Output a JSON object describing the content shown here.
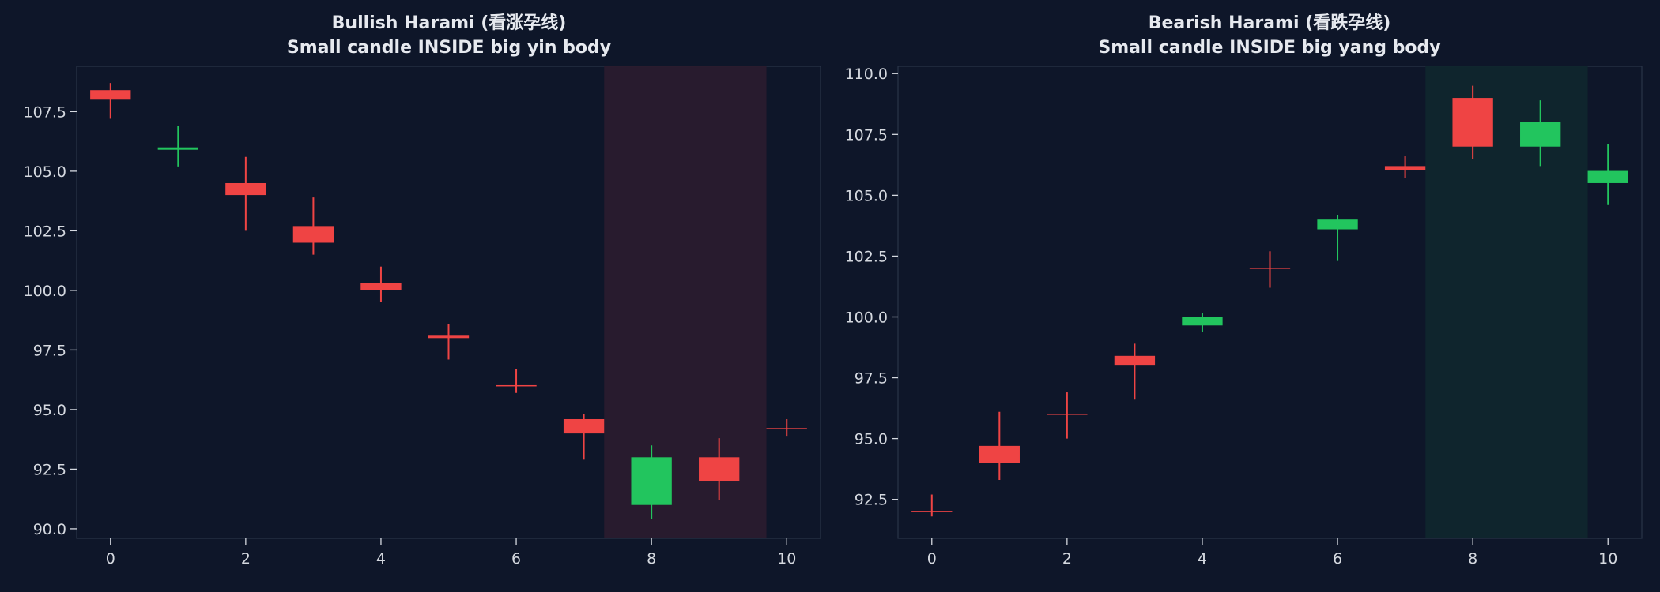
{
  "colors": {
    "background": "#0e1629",
    "panel_face": "#0e1629",
    "panel_edge": "#2a3448",
    "text": "#d5d9e0",
    "title_text": "#e6e9ef",
    "yin": "#ef4444",
    "yang": "#22c55e",
    "highlight_bullish": "#2a1b2e",
    "highlight_bearish": "#10262d"
  },
  "chart_data": [
    {
      "type": "candlestick",
      "title": "Bullish Harami (看涨孕线)",
      "subtitle": "Small candle INSIDE big yin body",
      "xlabel": "",
      "ylabel": "",
      "xlim": [
        -0.5,
        10.5
      ],
      "ylim": [
        89.6,
        109.4
      ],
      "xticks": [
        0,
        2,
        4,
        6,
        8,
        10
      ],
      "yticks": [
        90.0,
        92.5,
        95.0,
        97.5,
        100.0,
        102.5,
        105.0,
        107.5
      ],
      "grid": false,
      "highlight": {
        "x0": 7.3,
        "x1": 9.7,
        "color": "#2a1b2e"
      },
      "candles": [
        {
          "x": 0,
          "open": 108.4,
          "close": 108.0,
          "high": 108.7,
          "low": 107.2
        },
        {
          "x": 1,
          "open": 105.9,
          "close": 106.0,
          "high": 106.9,
          "low": 105.2
        },
        {
          "x": 2,
          "open": 104.5,
          "close": 104.0,
          "high": 105.6,
          "low": 102.5
        },
        {
          "x": 3,
          "open": 102.7,
          "close": 102.0,
          "high": 103.9,
          "low": 101.5
        },
        {
          "x": 4,
          "open": 100.3,
          "close": 100.0,
          "high": 101.0,
          "low": 99.5
        },
        {
          "x": 5,
          "open": 98.1,
          "close": 98.0,
          "high": 98.6,
          "low": 97.1
        },
        {
          "x": 6,
          "open": 96.0,
          "close": 96.0,
          "high": 96.7,
          "low": 95.7
        },
        {
          "x": 7,
          "open": 94.6,
          "close": 94.0,
          "high": 94.8,
          "low": 92.9
        },
        {
          "x": 8,
          "open": 91.0,
          "close": 93.0,
          "high": 93.5,
          "low": 90.4
        },
        {
          "x": 9,
          "open": 93.0,
          "close": 92.0,
          "high": 93.8,
          "low": 91.2
        },
        {
          "x": 10,
          "open": 94.2,
          "close": 94.2,
          "high": 94.6,
          "low": 93.9
        }
      ]
    },
    {
      "type": "candlestick",
      "title": "Bearish Harami (看跌孕线)",
      "subtitle": "Small candle INSIDE big yang body",
      "xlabel": "",
      "ylabel": "",
      "xlim": [
        -0.5,
        10.5
      ],
      "ylim": [
        90.9,
        110.3
      ],
      "xticks": [
        0,
        2,
        4,
        6,
        8,
        10
      ],
      "yticks": [
        92.5,
        95.0,
        97.5,
        100.0,
        102.5,
        105.0,
        107.5,
        110.0
      ],
      "grid": false,
      "highlight": {
        "x0": 7.3,
        "x1": 9.7,
        "color": "#10262d"
      },
      "candles": [
        {
          "x": 0,
          "open": 92.0,
          "close": 92.0,
          "high": 92.7,
          "low": 91.8
        },
        {
          "x": 1,
          "open": 94.7,
          "close": 94.0,
          "high": 96.1,
          "low": 93.3
        },
        {
          "x": 2,
          "open": 96.0,
          "close": 96.0,
          "high": 96.9,
          "low": 95.0
        },
        {
          "x": 3,
          "open": 98.4,
          "close": 98.0,
          "high": 98.9,
          "low": 96.6
        },
        {
          "x": 4,
          "open": 99.65,
          "close": 100.0,
          "high": 100.15,
          "low": 99.4
        },
        {
          "x": 5,
          "open": 102.0,
          "close": 102.0,
          "high": 102.7,
          "low": 101.2
        },
        {
          "x": 6,
          "open": 103.6,
          "close": 104.0,
          "high": 104.2,
          "low": 102.3
        },
        {
          "x": 7,
          "open": 106.2,
          "close": 106.05,
          "high": 106.6,
          "low": 105.7
        },
        {
          "x": 8,
          "open": 109.0,
          "close": 107.0,
          "high": 109.5,
          "low": 106.5
        },
        {
          "x": 9,
          "open": 107.0,
          "close": 108.0,
          "high": 108.9,
          "low": 106.2
        },
        {
          "x": 10,
          "open": 105.5,
          "close": 106.0,
          "high": 107.1,
          "low": 104.6
        }
      ]
    }
  ]
}
